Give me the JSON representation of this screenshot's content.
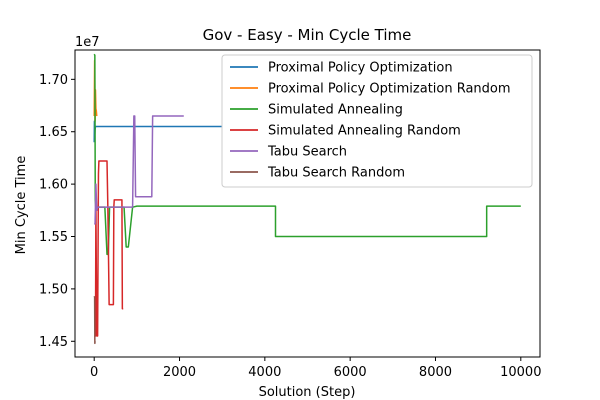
{
  "chart_data": {
    "type": "line",
    "title": "Gov - Easy - Min Cycle Time",
    "xlabel": "Solution (Step)",
    "ylabel": "Min Cycle Time",
    "y_offset_label": "1e7",
    "xlim": [
      -450,
      10450
    ],
    "ylim": [
      1.435,
      1.728
    ],
    "x_ticks": [
      0,
      2000,
      4000,
      6000,
      8000,
      10000
    ],
    "x_tick_labels": [
      "0",
      "2000",
      "4000",
      "6000",
      "8000",
      "10000"
    ],
    "y_ticks": [
      1.45,
      1.5,
      1.55,
      1.6,
      1.65,
      1.7
    ],
    "y_tick_labels": [
      "1.45",
      "1.50",
      "1.55",
      "1.60",
      "1.65",
      "1.70"
    ],
    "legend_position": "top-right",
    "series": [
      {
        "name": "Proximal Policy Optimization",
        "color": "#1f77b4",
        "x": [
          0,
          5,
          10,
          20,
          30,
          40,
          50,
          3000
        ],
        "y": [
          1.64,
          1.66,
          1.645,
          1.652,
          1.655,
          1.655,
          1.655,
          1.655
        ]
      },
      {
        "name": "Proximal Policy Optimization Random",
        "color": "#ff7f0e",
        "x": [
          0,
          10,
          20,
          30,
          40,
          50,
          60
        ],
        "y": [
          1.665,
          1.718,
          1.66,
          1.69,
          1.672,
          1.67,
          1.665
        ]
      },
      {
        "name": "Simulated Annealing",
        "color": "#2ca02c",
        "x": [
          0,
          15,
          25,
          40,
          60,
          100,
          150,
          250,
          300,
          330,
          360,
          420,
          500,
          600,
          700,
          750,
          800,
          900,
          1000,
          4250,
          4250,
          9200,
          9200,
          10000
        ],
        "y": [
          1.724,
          1.723,
          1.585,
          1.575,
          1.578,
          1.578,
          1.578,
          1.578,
          1.533,
          1.533,
          1.578,
          1.578,
          1.578,
          1.578,
          1.578,
          1.54,
          1.54,
          1.578,
          1.579,
          1.579,
          1.55,
          1.55,
          1.579,
          1.579
        ]
      },
      {
        "name": "Simulated Annealing Random",
        "color": "#d62728",
        "x": [
          0,
          30,
          40,
          60,
          80,
          100,
          110,
          120,
          300,
          320,
          350,
          360,
          450,
          460,
          470,
          480,
          650,
          660,
          680
        ],
        "y": [
          1.455,
          1.455,
          1.578,
          1.455,
          1.455,
          1.61,
          1.622,
          1.622,
          1.622,
          1.578,
          1.485,
          1.485,
          1.485,
          1.578,
          1.585,
          1.585,
          1.585,
          1.481,
          1.481
        ]
      },
      {
        "name": "Tabu Search",
        "color": "#9467bd",
        "x": [
          0,
          20,
          40,
          60,
          80,
          100,
          500,
          900,
          930,
          950,
          970,
          1000,
          1350,
          1370,
          2100
        ],
        "y": [
          1.562,
          1.562,
          1.6,
          1.575,
          1.578,
          1.578,
          1.578,
          1.578,
          1.665,
          1.665,
          1.588,
          1.588,
          1.588,
          1.665,
          1.665
        ]
      },
      {
        "name": "Tabu Search Random",
        "color": "#8c564b",
        "x": [
          0,
          10,
          15,
          20,
          30
        ],
        "y": [
          1.493,
          1.492,
          1.448,
          1.45,
          1.45
        ]
      }
    ]
  }
}
